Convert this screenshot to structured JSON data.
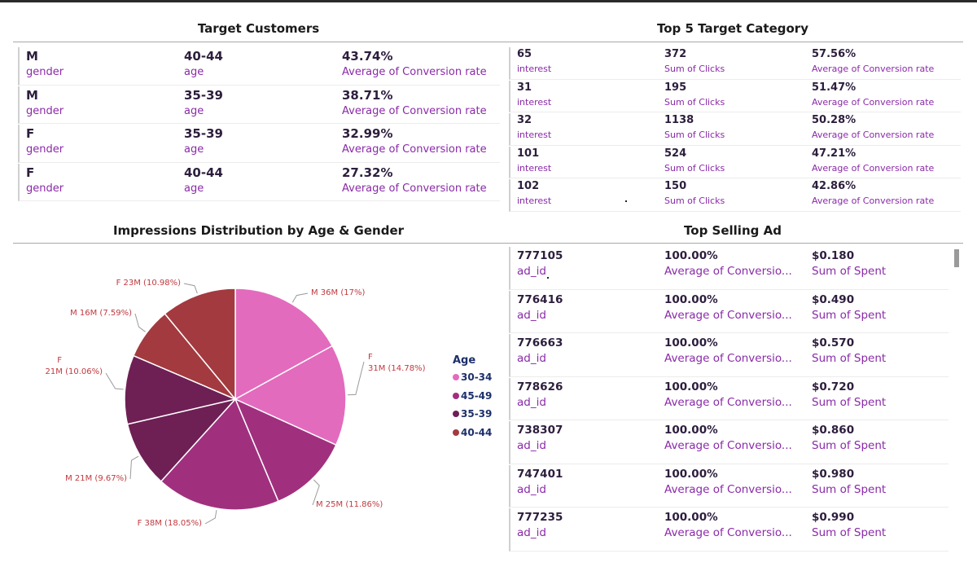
{
  "target_customers": {
    "title": "Target Customers",
    "rows": [
      {
        "gender": "M",
        "gender_label": "gender",
        "age": "40-44",
        "age_label": "age",
        "rate": "43.74%",
        "rate_label": "Average of Conversion rate"
      },
      {
        "gender": "M",
        "gender_label": "gender",
        "age": "35-39",
        "age_label": "age",
        "rate": "38.71%",
        "rate_label": "Average of Conversion rate"
      },
      {
        "gender": "F",
        "gender_label": "gender",
        "age": "35-39",
        "age_label": "age",
        "rate": "32.99%",
        "rate_label": "Average of Conversion rate"
      },
      {
        "gender": "F",
        "gender_label": "gender",
        "age": "40-44",
        "age_label": "age",
        "rate": "27.32%",
        "rate_label": "Average of Conversion rate"
      }
    ]
  },
  "top_categories": {
    "title": "Top 5 Target Category",
    "rows": [
      {
        "interest": "65",
        "interest_label": "interest",
        "clicks": "372",
        "clicks_label": "Sum of Clicks",
        "rate": "57.56%",
        "rate_label": "Average of Conversion rate"
      },
      {
        "interest": "31",
        "interest_label": "interest",
        "clicks": "195",
        "clicks_label": "Sum of Clicks",
        "rate": "51.47%",
        "rate_label": "Average of Conversion rate"
      },
      {
        "interest": "32",
        "interest_label": "interest",
        "clicks": "1138",
        "clicks_label": "Sum of Clicks",
        "rate": "50.28%",
        "rate_label": "Average of Conversion rate"
      },
      {
        "interest": "101",
        "interest_label": "interest",
        "clicks": "524",
        "clicks_label": "Sum of Clicks",
        "rate": "47.21%",
        "rate_label": "Average of Conversion rate"
      },
      {
        "interest": "102",
        "interest_label": "interest",
        "clicks": "150",
        "clicks_label": "Sum of Clicks",
        "rate": "42.86%",
        "rate_label": "Average of Conversion rate"
      }
    ]
  },
  "top_selling_ad": {
    "title": "Top Selling Ad",
    "rows": [
      {
        "ad_id": "777105",
        "ad_label": "ad_id",
        "rate": "100.00%",
        "rate_label": "Average of Conversio...",
        "spent": "$0.180",
        "spent_label": "Sum of Spent"
      },
      {
        "ad_id": "776416",
        "ad_label": "ad_id",
        "rate": "100.00%",
        "rate_label": "Average of Conversio...",
        "spent": "$0.490",
        "spent_label": "Sum of Spent"
      },
      {
        "ad_id": "776663",
        "ad_label": "ad_id",
        "rate": "100.00%",
        "rate_label": "Average of Conversio...",
        "spent": "$0.570",
        "spent_label": "Sum of Spent"
      },
      {
        "ad_id": "778626",
        "ad_label": "ad_id",
        "rate": "100.00%",
        "rate_label": "Average of Conversio...",
        "spent": "$0.720",
        "spent_label": "Sum of Spent"
      },
      {
        "ad_id": "738307",
        "ad_label": "ad_id",
        "rate": "100.00%",
        "rate_label": "Average of Conversio...",
        "spent": "$0.860",
        "spent_label": "Sum of Spent"
      },
      {
        "ad_id": "747401",
        "ad_label": "ad_id",
        "rate": "100.00%",
        "rate_label": "Average of Conversio...",
        "spent": "$0.980",
        "spent_label": "Sum of Spent"
      },
      {
        "ad_id": "777235",
        "ad_label": "ad_id",
        "rate": "100.00%",
        "rate_label": "Average of Conversio...",
        "spent": "$0.990",
        "spent_label": "Sum of Spent"
      }
    ]
  },
  "chart_data": {
    "type": "pie",
    "title": "Impressions Distribution by Age & Gender",
    "legend_title": "Age",
    "legend_position": "right",
    "legend": [
      {
        "name": "30-34",
        "color": "#e36bbd"
      },
      {
        "name": "45-49",
        "color": "#a0307e"
      },
      {
        "name": "35-39",
        "color": "#6e2055"
      },
      {
        "name": "40-44",
        "color": "#a33a3f"
      }
    ],
    "slices": [
      {
        "gender": "M",
        "age": "30-34",
        "value_label": "36M",
        "percent": 17.0,
        "label": "M 36M (17%)",
        "color": "#e36bbd"
      },
      {
        "gender": "F",
        "age": "30-34",
        "value_label": "31M",
        "percent": 14.78,
        "label": "F 31M (14.78%)",
        "color": "#e36bbd"
      },
      {
        "gender": "M",
        "age": "45-49",
        "value_label": "25M",
        "percent": 11.86,
        "label": "M 25M (11.86%)",
        "color": "#a0307e"
      },
      {
        "gender": "F",
        "age": "45-49",
        "value_label": "38M",
        "percent": 18.05,
        "label": "F 38M (18.05%)",
        "color": "#a0307e"
      },
      {
        "gender": "M",
        "age": "35-39",
        "value_label": "21M",
        "percent": 9.67,
        "label": "M 21M (9.67%)",
        "color": "#6e2055"
      },
      {
        "gender": "F",
        "age": "35-39",
        "value_label": "21M",
        "percent": 10.06,
        "label": "F 21M (10.06%)",
        "color": "#6e2055"
      },
      {
        "gender": "M",
        "age": "40-44",
        "value_label": "16M",
        "percent": 7.59,
        "label": "M 16M (7.59%)",
        "color": "#a33a3f"
      },
      {
        "gender": "F",
        "age": "40-44",
        "value_label": "23M",
        "percent": 10.98,
        "label": "F 23M (10.98%)",
        "color": "#a33a3f"
      }
    ]
  }
}
